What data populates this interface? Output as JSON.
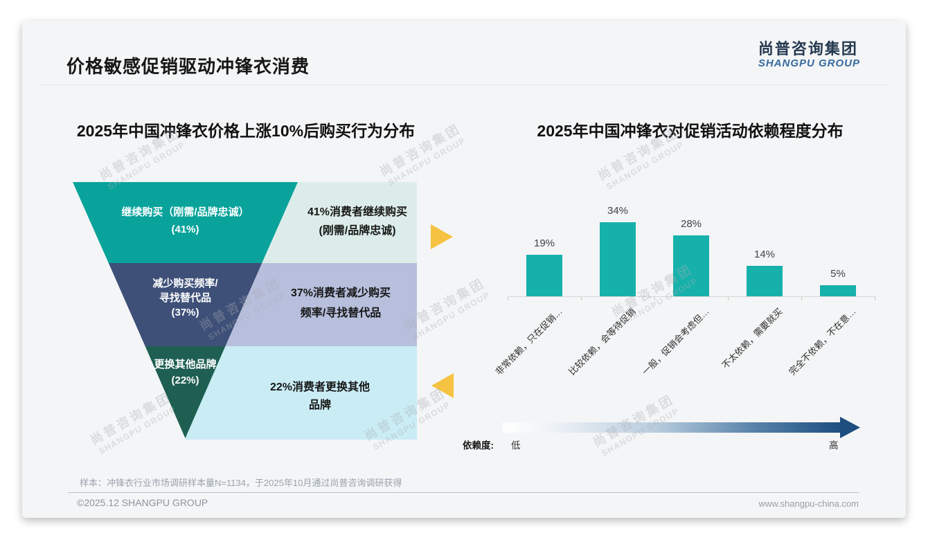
{
  "page": {
    "title": "价格敏感促销驱动冲锋衣消费",
    "logo": {
      "cn": "尚普咨询集团",
      "en": "SHANGPU GROUP"
    },
    "watermark": {
      "cn": "尚普咨询集团",
      "en": "SHANGPU GROUP"
    },
    "footer": {
      "note": "样本：冲锋衣行业市场调研样本量N=1134，于2025年10月通过尚普咨询调研获得",
      "copyright": "©2025.12 SHANGPU GROUP",
      "website": "www.shangpu-china.com"
    }
  },
  "colors": {
    "flow_arrow": "#F5C242",
    "gradient_arrow_start": "#FFFFFF",
    "gradient_arrow_end": "#1D4E80",
    "logo_cn": "#24384F",
    "logo_en": "#356AA0"
  },
  "chart_data": [
    {
      "type": "funnel",
      "title": "2025年中国冲锋衣价格上涨10%后购买行为分布",
      "categories": [
        "继续购买（刚需/品牌忠诚）",
        "减少购买频率/寻找替代品",
        "更换其他品牌"
      ],
      "values": [
        41,
        37,
        22
      ],
      "unit": "%",
      "levels": [
        {
          "label_lines": [
            "继续购买（刚需/品牌忠诚）",
            "(41%)"
          ],
          "desc_lines": [
            "41%消费者继续购买",
            "(刚需/品牌忠诚)"
          ],
          "color": "#09A39B",
          "desc_bg": "#DCEDE9"
        },
        {
          "label_lines": [
            "减少购买频率/",
            "寻找替代品",
            "(37%)"
          ],
          "desc_lines": [
            "37%消费者减少购买",
            "频率/寻找替代品"
          ],
          "color": "#3E5078",
          "desc_bg": "#B7BFDC"
        },
        {
          "label_lines": [
            "更换其他品牌",
            "(22%)"
          ],
          "desc_lines": [
            "22%消费者更换其他",
            "品牌"
          ],
          "color": "#1E5F52",
          "desc_bg": "#CAECF5"
        }
      ]
    },
    {
      "type": "bar",
      "title": "2025年中国冲锋衣对促销活动依赖程度分布",
      "categories": [
        "非常依赖，只在促销…",
        "比较依赖，会等待促销",
        "一般，促销会考虑但…",
        "不太依赖，需要就买",
        "完全不依赖，不在意…"
      ],
      "values": [
        19,
        34,
        28,
        14,
        5
      ],
      "labels": [
        "19%",
        "34%",
        "28%",
        "14%",
        "5%"
      ],
      "unit": "%",
      "bar_color": "#17B1AB",
      "grid": false,
      "axis_legend": {
        "label": "依赖度:",
        "low": "低",
        "high": "高"
      }
    }
  ]
}
